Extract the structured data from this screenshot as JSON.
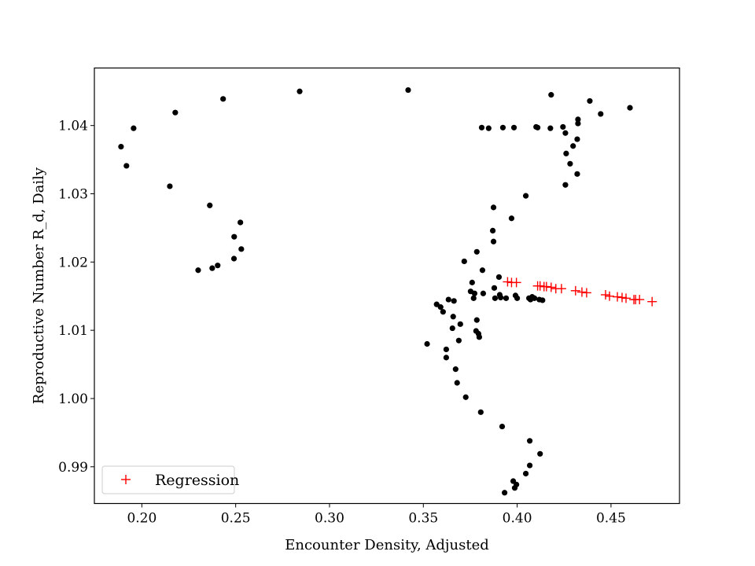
{
  "chart_data": {
    "type": "scatter",
    "title": "",
    "xlabel": "Encounter Density, Adjusted",
    "ylabel": "Reproductive Number R_d, Daily",
    "xlim": [
      0.1747,
      0.4865
    ],
    "ylim": [
      0.98462,
      1.04843
    ],
    "xticks": [
      0.2,
      0.25,
      0.3,
      0.35,
      0.4,
      0.45
    ],
    "xtick_labels": [
      "0.20",
      "0.25",
      "0.30",
      "0.35",
      "0.40",
      "0.45"
    ],
    "yticks": [
      0.99,
      1.0,
      1.01,
      1.02,
      1.03,
      1.04
    ],
    "ytick_labels": [
      "0.99",
      "1.00",
      "1.01",
      "1.02",
      "1.03",
      "1.04"
    ],
    "grid": false,
    "legend": {
      "position": "lower-left",
      "entries": [
        "Regression"
      ]
    },
    "series": [
      {
        "name": "Observed",
        "marker": "dot",
        "color": "#000000",
        "in_legend": false,
        "points": [
          [
            0.1889,
            1.0369
          ],
          [
            0.1918,
            1.0341
          ],
          [
            0.1956,
            1.0396
          ],
          [
            0.2149,
            1.0311
          ],
          [
            0.2178,
            1.0419
          ],
          [
            0.23,
            1.0188
          ],
          [
            0.2362,
            1.0283
          ],
          [
            0.2375,
            1.0191
          ],
          [
            0.2404,
            1.0195
          ],
          [
            0.2433,
            1.0439
          ],
          [
            0.2491,
            1.0205
          ],
          [
            0.2492,
            1.0237
          ],
          [
            0.2525,
            1.0258
          ],
          [
            0.253,
            1.0219
          ],
          [
            0.2841,
            1.045
          ],
          [
            0.3419,
            1.0452
          ],
          [
            0.352,
            1.008
          ],
          [
            0.3571,
            1.0138
          ],
          [
            0.3592,
            1.0134
          ],
          [
            0.3605,
            1.0127
          ],
          [
            0.3622,
            1.0072
          ],
          [
            0.3622,
            1.006
          ],
          [
            0.3634,
            1.0145
          ],
          [
            0.3655,
            1.0103
          ],
          [
            0.3659,
            1.012
          ],
          [
            0.3663,
            1.0143
          ],
          [
            0.3672,
            1.0043
          ],
          [
            0.368,
            1.0023
          ],
          [
            0.3689,
            1.0085
          ],
          [
            0.3697,
            1.0109
          ],
          [
            0.3718,
            1.0201
          ],
          [
            0.3726,
            1.0002
          ],
          [
            0.3752,
            1.0157
          ],
          [
            0.376,
            1.017
          ],
          [
            0.3768,
            1.0147
          ],
          [
            0.3773,
            1.0154
          ],
          [
            0.3781,
            1.0099
          ],
          [
            0.3785,
            1.0215
          ],
          [
            0.3785,
            1.0115
          ],
          [
            0.3794,
            1.0095
          ],
          [
            0.3798,
            1.009
          ],
          [
            0.3806,
            0.998
          ],
          [
            0.3811,
            1.0397
          ],
          [
            0.3815,
            1.0188
          ],
          [
            0.3819,
            1.0154
          ],
          [
            0.3848,
            1.0396
          ],
          [
            0.387,
            1.0246
          ],
          [
            0.3874,
            1.028
          ],
          [
            0.3874,
            1.023
          ],
          [
            0.3878,
            1.0162
          ],
          [
            0.3882,
            1.0147
          ],
          [
            0.3903,
            1.0178
          ],
          [
            0.3907,
            1.0152
          ],
          [
            0.3912,
            1.0148
          ],
          [
            0.392,
            0.9959
          ],
          [
            0.3924,
            1.0397
          ],
          [
            0.3933,
            0.9862
          ],
          [
            0.3941,
            1.0147
          ],
          [
            0.397,
            1.0264
          ],
          [
            0.3979,
            0.9879
          ],
          [
            0.3983,
            1.0397
          ],
          [
            0.3987,
            0.9869
          ],
          [
            0.3991,
            1.0151
          ],
          [
            0.3996,
            0.9874
          ],
          [
            0.4,
            1.0147
          ],
          [
            0.4046,
            1.0297
          ],
          [
            0.4046,
            0.989
          ],
          [
            0.4063,
            1.0147
          ],
          [
            0.4067,
            0.9902
          ],
          [
            0.4067,
            0.9938
          ],
          [
            0.4071,
            1.0145
          ],
          [
            0.408,
            1.0149
          ],
          [
            0.4092,
            1.0147
          ],
          [
            0.4101,
            1.0398
          ],
          [
            0.4109,
            1.0397
          ],
          [
            0.4118,
            1.0145
          ],
          [
            0.4122,
            0.9919
          ],
          [
            0.4135,
            1.0144
          ],
          [
            0.4177,
            1.0396
          ],
          [
            0.4181,
            1.0445
          ],
          [
            0.4244,
            1.0398
          ],
          [
            0.4257,
            1.0313
          ],
          [
            0.4257,
            1.0389
          ],
          [
            0.4261,
            1.0359
          ],
          [
            0.4282,
            1.0344
          ],
          [
            0.4298,
            1.037
          ],
          [
            0.432,
            1.0329
          ],
          [
            0.432,
            1.038
          ],
          [
            0.4324,
            1.0409
          ],
          [
            0.4324,
            1.0403
          ],
          [
            0.4387,
            1.0436
          ],
          [
            0.4445,
            1.0417
          ],
          [
            0.4601,
            1.0426
          ]
        ]
      },
      {
        "name": "Regression",
        "marker": "plus",
        "color": "#ff0000",
        "in_legend": true,
        "points": [
          [
            0.3949,
            1.0171
          ],
          [
            0.397,
            1.017
          ],
          [
            0.3996,
            1.017
          ],
          [
            0.4109,
            1.0165
          ],
          [
            0.4122,
            1.0165
          ],
          [
            0.4143,
            1.0164
          ],
          [
            0.4156,
            1.0164
          ],
          [
            0.4181,
            1.0163
          ],
          [
            0.4206,
            1.0161
          ],
          [
            0.4236,
            1.0161
          ],
          [
            0.4311,
            1.0158
          ],
          [
            0.4345,
            1.0156
          ],
          [
            0.437,
            1.0155
          ],
          [
            0.4471,
            1.0152
          ],
          [
            0.4492,
            1.015
          ],
          [
            0.4534,
            1.0149
          ],
          [
            0.4559,
            1.0148
          ],
          [
            0.458,
            1.0147
          ],
          [
            0.4622,
            1.0145
          ],
          [
            0.4631,
            1.0145
          ],
          [
            0.4652,
            1.0145
          ],
          [
            0.4719,
            1.0142
          ]
        ]
      }
    ]
  }
}
